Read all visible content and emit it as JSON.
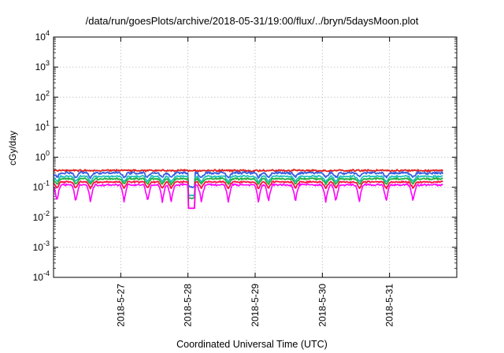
{
  "chart_data": {
    "type": "line",
    "title": "/data/run/goesPlots/archive/2018-05-31/19:00/flux/../bryn/5daysMoon.plot",
    "xlabel": "Coordinated Universal Time (UTC)",
    "ylabel": "cGy/day",
    "y_scale": "log",
    "ylim_exponents": [
      -4,
      4
    ],
    "y_tick_base": "10",
    "y_tick_exponents": [
      "-4",
      "-3",
      "-2",
      "-1",
      "0",
      "1",
      "2",
      "3",
      "4"
    ],
    "xlim": [
      "2018-05-26",
      "2018-06-01"
    ],
    "x_start_date": "2018-05-26",
    "x_end_date": "2018-05-31T19:00",
    "x_ticks": [
      "2018-5-27",
      "2018-5-28",
      "2018-5-29",
      "2018-5-30",
      "2018-5-31"
    ],
    "grid": true,
    "series": [
      {
        "color": "#e02020",
        "base": 0.36,
        "noise": 0.05,
        "dip": 0.0
      },
      {
        "color": "#3a5fe0",
        "base": 0.3,
        "noise": 0.07,
        "dip": 0.3
      },
      {
        "color": "#20c0c0",
        "base": 0.23,
        "noise": 0.04,
        "dip": 0.35
      },
      {
        "color": "#20b040",
        "base": 0.19,
        "noise": 0.04,
        "dip": 0.35
      },
      {
        "color": "#ff1040",
        "base": 0.15,
        "noise": 0.04,
        "dip": 0.4
      },
      {
        "color": "#ff00ff",
        "base": 0.12,
        "noise": 0.06,
        "dip": 0.75
      }
    ]
  }
}
